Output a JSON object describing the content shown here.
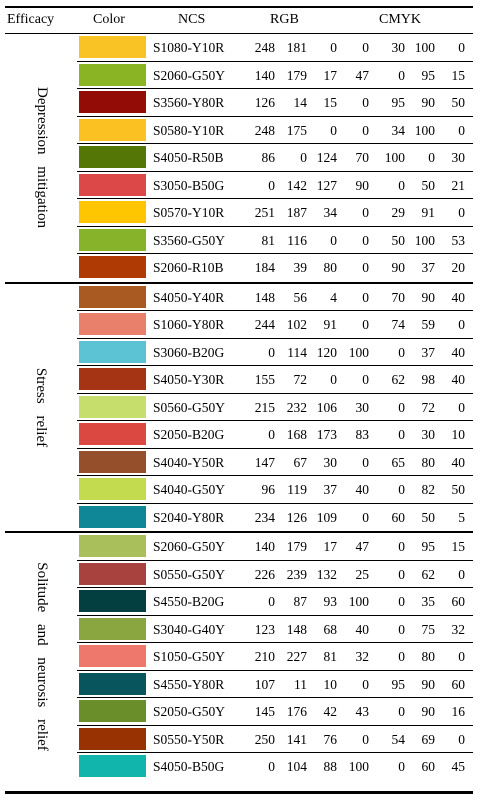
{
  "headers": {
    "efficacy": "Efficacy",
    "color": "Color",
    "ncs": "NCS",
    "rgb": "RGB",
    "cmyk": "CMYK"
  },
  "groups": [
    {
      "label": "Depression mitigation",
      "rows": [
        {
          "swatch": "#F9C325",
          "ncs": "S1080-Y10R",
          "r": "248",
          "g": "181",
          "b": "0",
          "c": "0",
          "m": "30",
          "y": "100",
          "k": "0"
        },
        {
          "swatch": "#8BB424",
          "ncs": "S2060-G50Y",
          "r": "140",
          "g": "179",
          "b": "17",
          "c": "47",
          "m": "0",
          "y": "95",
          "k": "15"
        },
        {
          "swatch": "#930D06",
          "ncs": "S3560-Y80R",
          "r": "126",
          "g": "14",
          "b": "15",
          "c": "0",
          "m": "95",
          "y": "90",
          "k": "50"
        },
        {
          "swatch": "#FBC122",
          "ncs": "S0580-Y10R",
          "r": "248",
          "g": "175",
          "b": "0",
          "c": "0",
          "m": "34",
          "y": "100",
          "k": "0"
        },
        {
          "swatch": "#547607",
          "ncs": "S4050-R50B",
          "r": "86",
          "g": "0",
          "b": "124",
          "c": "70",
          "m": "100",
          "y": "0",
          "k": "30"
        },
        {
          "swatch": "#DC4848",
          "ncs": "S3050-B50G",
          "r": "0",
          "g": "142",
          "b": "127",
          "c": "90",
          "m": "0",
          "y": "50",
          "k": "21"
        },
        {
          "swatch": "#FDC600",
          "ncs": "S0570-Y10R",
          "r": "251",
          "g": "187",
          "b": "34",
          "c": "0",
          "m": "29",
          "y": "91",
          "k": "0"
        },
        {
          "swatch": "#87B32B",
          "ncs": "S3560-G50Y",
          "r": "81",
          "g": "116",
          "b": "0",
          "c": "0",
          "m": "50",
          "y": "100",
          "k": "53"
        },
        {
          "swatch": "#B03A04",
          "ncs": "S2060-R10B",
          "r": "184",
          "g": "39",
          "b": "80",
          "c": "0",
          "m": "90",
          "y": "37",
          "k": "20"
        }
      ]
    },
    {
      "label": "Stress relief",
      "rows": [
        {
          "swatch": "#A95A22",
          "ncs": "S4050-Y40R",
          "r": "148",
          "g": "56",
          "b": "4",
          "c": "0",
          "m": "70",
          "y": "90",
          "k": "40"
        },
        {
          "swatch": "#E8806B",
          "ncs": "S1060-Y80R",
          "r": "244",
          "g": "102",
          "b": "91",
          "c": "0",
          "m": "74",
          "y": "59",
          "k": "0"
        },
        {
          "swatch": "#5BC3D4",
          "ncs": "S3060-B20G",
          "r": "0",
          "g": "114",
          "b": "120",
          "c": "100",
          "m": "0",
          "y": "37",
          "k": "40"
        },
        {
          "swatch": "#A53414",
          "ncs": "S4050-Y30R",
          "r": "155",
          "g": "72",
          "b": "0",
          "c": "0",
          "m": "62",
          "y": "98",
          "k": "40"
        },
        {
          "swatch": "#C6DE6C",
          "ncs": "S0560-G50Y",
          "r": "215",
          "g": "232",
          "b": "106",
          "c": "30",
          "m": "0",
          "y": "72",
          "k": "0"
        },
        {
          "swatch": "#DB4841",
          "ncs": "S2050-B20G",
          "r": "0",
          "g": "168",
          "b": "173",
          "c": "83",
          "m": "0",
          "y": "30",
          "k": "10"
        },
        {
          "swatch": "#95502B",
          "ncs": "S4040-Y50R",
          "r": "147",
          "g": "67",
          "b": "30",
          "c": "0",
          "m": "65",
          "y": "80",
          "k": "40"
        },
        {
          "swatch": "#C3DC4F",
          "ncs": "S4040-G50Y",
          "r": "96",
          "g": "119",
          "b": "37",
          "c": "40",
          "m": "0",
          "y": "82",
          "k": "50"
        },
        {
          "swatch": "#0F8796",
          "ncs": "S2040-Y80R",
          "r": "234",
          "g": "126",
          "b": "109",
          "c": "0",
          "m": "60",
          "y": "50",
          "k": "5"
        }
      ]
    },
    {
      "label": "Solitude and neurosis relief",
      "rows": [
        {
          "swatch": "#A9BF5C",
          "ncs": "S2060-G50Y",
          "r": "140",
          "g": "179",
          "b": "17",
          "c": "47",
          "m": "0",
          "y": "95",
          "k": "15"
        },
        {
          "swatch": "#A7423E",
          "ncs": "S0550-G50Y",
          "r": "226",
          "g": "239",
          "b": "132",
          "c": "25",
          "m": "0",
          "y": "62",
          "k": "0"
        },
        {
          "swatch": "#033E41",
          "ncs": "S4550-B20G",
          "r": "0",
          "g": "87",
          "b": "93",
          "c": "100",
          "m": "0",
          "y": "35",
          "k": "60"
        },
        {
          "swatch": "#8AA640",
          "ncs": "S3040-G40Y",
          "r": "123",
          "g": "148",
          "b": "68",
          "c": "40",
          "m": "0",
          "y": "75",
          "k": "32"
        },
        {
          "swatch": "#EE786B",
          "ncs": "S1050-G50Y",
          "r": "210",
          "g": "227",
          "b": "81",
          "c": "32",
          "m": "0",
          "y": "80",
          "k": "0"
        },
        {
          "swatch": "#08555E",
          "ncs": "S4550-Y80R",
          "r": "107",
          "g": "11",
          "b": "10",
          "c": "0",
          "m": "95",
          "y": "90",
          "k": "60"
        },
        {
          "swatch": "#6A8F2A",
          "ncs": "S2050-G50Y",
          "r": "145",
          "g": "176",
          "b": "42",
          "c": "43",
          "m": "0",
          "y": "90",
          "k": "16"
        },
        {
          "swatch": "#993202",
          "ncs": "S0550-Y50R",
          "r": "250",
          "g": "141",
          "b": "76",
          "c": "0",
          "m": "54",
          "y": "69",
          "k": "0"
        },
        {
          "swatch": "#12B5AB",
          "ncs": "S4050-B50G",
          "r": "0",
          "g": "104",
          "b": "88",
          "c": "100",
          "m": "0",
          "y": "60",
          "k": "45"
        }
      ]
    }
  ]
}
